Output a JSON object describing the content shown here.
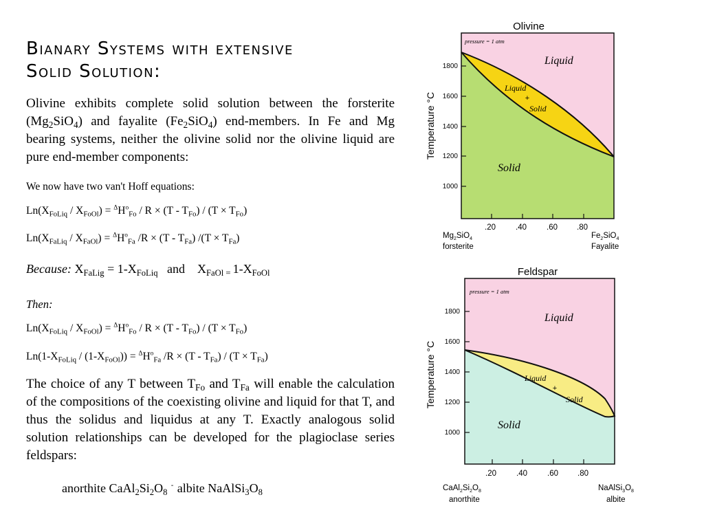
{
  "title": {
    "line1": "Bianary Systems with extensive",
    "line2": "Solid Solution:"
  },
  "para1": {
    "t1": "Olivine exhibits complete solid solution between the forsterite (Mg",
    "s1": "2",
    "t2": "SiO",
    "s2": "4",
    "t3": ") and fayalite (Fe",
    "s3": "2",
    "t4": "SiO",
    "s4": "4",
    "t5": ") end-members. In Fe and Mg bearing systems, neither the olivine solid nor the olivine liquid are pure end-member components:"
  },
  "intro_line": "We now have two van't Hoff equations:",
  "eq1": {
    "a": "Ln(X",
    "b": "FoLiq",
    "c": " / X",
    "d": "FoOl",
    "e": ") = ",
    "f": "Δ",
    "g": "H",
    "h": "o",
    "i": "Fo",
    "j": " / R × (T - T",
    "k": "Fo",
    "l": ") / (T × T",
    "m": "Fo",
    "n": ")"
  },
  "eq2": {
    "a": "Ln(X",
    "b": "FaLiq",
    "c": " / X",
    "d": "FaOl",
    "e": ") = ",
    "f": "Δ",
    "g": "H",
    "h": "o",
    "i": "Fa",
    "j": " /R × (T - T",
    "k": "Fa",
    "l": ")  /(T × T",
    "m": "Fa",
    "n": ")"
  },
  "because": {
    "label": "Because:",
    "a": " X",
    "b": "FaLig",
    "c": " = 1-X",
    "d": "FoLiq",
    "e": "   and    X",
    "f": "FaOl",
    "g": " = ",
    "h": "1-X",
    "i": "FoOl"
  },
  "then_label": "Then:",
  "eq3": {
    "a": "Ln(X",
    "b": "FoLiq",
    "c": " / X",
    "d": "FoOl",
    "e": ") = ",
    "f": "Δ",
    "g": "H",
    "h": "o",
    "i": "Fo",
    "j": " / R × (T - T",
    "k": "Fo",
    "l": ") / (T × T",
    "m": "Fo",
    "n": ")"
  },
  "eq4": {
    "a": "Ln(1-X",
    "b": "FoLiq",
    "c": " / (1-X",
    "d": "FoOl",
    "e": ")) = ",
    "f": "Δ",
    "g": "H",
    "h": "o",
    "i": "Fa",
    "j": " /R × (T - T",
    "k": "Fa",
    "l": ") / (T × T",
    "m": "Fa",
    "n": ")"
  },
  "para2": {
    "t1": "The choice of any T between T",
    "s1": "Fo",
    "t2": " and T",
    "s2": "Fa",
    "t3": " will enable the calculation of the compositions of the coexisting olivine and liquid for that T, and thus the solidus and liquidus at any T.  Exactly analogous solid solution relationships can be developed for the plagioclase series feldspars:"
  },
  "feldspar_line": {
    "a": "anorthite CaAl",
    "b": "2",
    "c": "Si",
    "d": "2",
    "e": "O",
    "f": "8",
    "g": "  -  ",
    "h": "albite NaAlSi",
    "i": "3",
    "j": "O",
    "k": "8"
  },
  "olivine_diagram": {
    "title": "Olivine",
    "pressure_label": "pressure = 1 atm",
    "y_axis_label": "Temperature °C",
    "y_ticks": [
      "1800",
      "1600",
      "1400",
      "1200",
      "1000"
    ],
    "x_ticks": [
      ".20",
      ".40",
      ".60",
      ".80"
    ],
    "liquid_label": "Liquid",
    "solid_label": "Solid",
    "two_phase_liquid": "Liquid",
    "two_phase_plus": "+",
    "two_phase_solid": "Solid",
    "left_formula": {
      "a": "Mg",
      "b": "2",
      "c": "SiO",
      "d": "4"
    },
    "left_name": "forsterite",
    "right_formula": {
      "a": "Fe",
      "b": "2",
      "c": "SiO",
      "d": "4"
    },
    "right_name": "Fayalite",
    "colors": {
      "liquid": "#f9d2e3",
      "two_phase": "#f6d414",
      "solid": "#b7dd72"
    }
  },
  "feldspar_diagram": {
    "title": "Feldspar",
    "pressure_label": "pressure = 1 atm",
    "y_axis_label": "Temperature °C",
    "y_ticks": [
      "1800",
      "1600",
      "1400",
      "1200",
      "1000"
    ],
    "x_ticks": [
      ".20",
      ".40",
      ".60",
      ".80"
    ],
    "liquid_label": "Liquid",
    "solid_label": "Solid",
    "two_phase_liquid": "Liquid",
    "two_phase_plus": "+",
    "two_phase_solid": "Solid",
    "left_formula": {
      "a": "CaAl",
      "b": "2",
      "c": "Si",
      "d": "2",
      "e": "O",
      "f": "8"
    },
    "left_name": "anorthite",
    "right_formula": {
      "a": "NaAlSi",
      "b": "3",
      "c": "O",
      "d": "8"
    },
    "right_name": "albite",
    "colors": {
      "liquid": "#f9d2e3",
      "two_phase": "#f8ec84",
      "solid": "#ccefe3"
    }
  }
}
